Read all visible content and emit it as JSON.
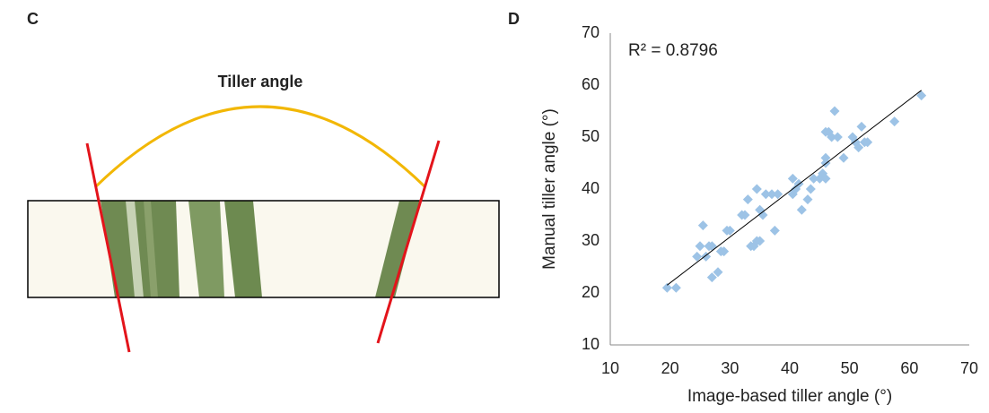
{
  "panel_c": {
    "label": "C",
    "title": "Tiller angle"
  },
  "chart_data": {
    "type": "scatter",
    "panel_label": "D",
    "annotation": "R² = 0.8796",
    "x_label": "Image-based tiller angle (°)",
    "y_label": "Manual tiller angle (°)",
    "xlim": [
      10,
      70
    ],
    "ylim": [
      10,
      70
    ],
    "xticks": [
      10,
      20,
      30,
      40,
      50,
      60,
      70
    ],
    "yticks": [
      10,
      20,
      30,
      40,
      50,
      60,
      70
    ],
    "color": "#9dc3e6",
    "x": [
      19.5,
      21,
      24.5,
      25,
      25.5,
      26,
      26.5,
      27,
      27,
      28,
      28.5,
      29,
      29.5,
      30,
      32,
      32.5,
      33,
      33.5,
      34,
      34.5,
      34.5,
      35,
      35,
      35.5,
      36,
      37,
      37.5,
      38,
      40.5,
      40.5,
      41,
      41.5,
      42,
      43,
      43.5,
      44,
      45,
      45.5,
      46,
      46,
      46,
      46,
      46.5,
      47,
      47.5,
      48,
      49,
      50.5,
      51,
      51.5,
      52,
      52.5,
      53,
      57.5,
      62
    ],
    "y": [
      21,
      21,
      27,
      29,
      33,
      27,
      29,
      29,
      23,
      24,
      28,
      28,
      32,
      32,
      35,
      35,
      38,
      29,
      29,
      40,
      30,
      30,
      36,
      35,
      39,
      39,
      32,
      39,
      42,
      39,
      40,
      41,
      36,
      38,
      40,
      42,
      42,
      43,
      51,
      46,
      45,
      42,
      51,
      50,
      55,
      50,
      46,
      50,
      49,
      48,
      52,
      49,
      49,
      53,
      58
    ],
    "trendline": {
      "x": [
        19.5,
        62
      ],
      "y": [
        21.5,
        59
      ]
    }
  }
}
